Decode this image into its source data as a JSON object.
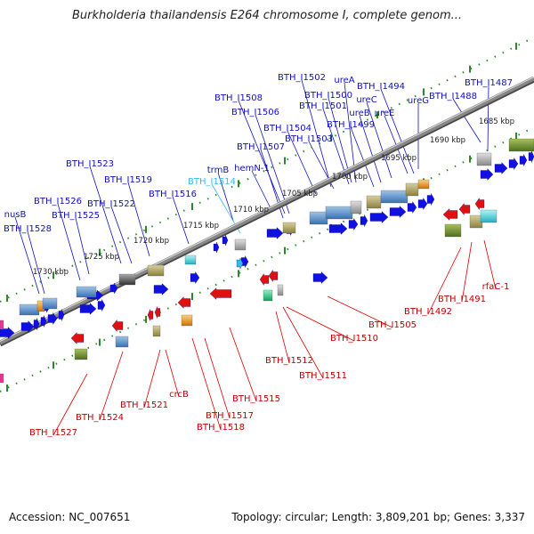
{
  "title": "Burkholderia thailandensis E264 chromosome I, complete genom...",
  "footer": {
    "accession": "Accession: NC_007651",
    "topology": "Topology: circular; Length: 3,809,201 bp; Genes: 3,337"
  },
  "colors": {
    "forward": "#1010e0",
    "reverse": "#e01010",
    "highlight": "#33bbee",
    "backbone": "#888888",
    "ruler": "#2a8a2a"
  },
  "kbp_labels": [
    "1730 kbp",
    "1725 kbp",
    "1720 kbp",
    "1715 kbp",
    "1710 kbp",
    "1705 kbp",
    "1700 kbp",
    "1695 kbp",
    "1690 kbp",
    "1685 kbp"
  ],
  "forward_labels": [
    "BTH_I1502",
    "ureA",
    "BTH_I1500",
    "BTH_I1494",
    "ureC",
    "BTH_I1487",
    "BTH_I1501",
    "BTH_I1488",
    "BTH_I1508",
    "ureB",
    "ureE",
    "ureG",
    "BTH_I1506",
    "BTH_I1499",
    "BTH_I1504",
    "BTH_I1503",
    "BTH_I1507",
    "trmB",
    "hemN-1",
    "BTH_I1514",
    "BTH_I1523",
    "BTH_I1519",
    "BTH_I1516",
    "BTH_I1526",
    "BTH_I1522",
    "nusB",
    "BTH_I1525",
    "BTH_I1528"
  ],
  "reverse_labels": [
    "rfaC-1",
    "BTH_I1491",
    "BTH_I1492",
    "BTH_I1505",
    "BTH_I1510",
    "BTH_I1512",
    "BTH_I1511",
    "BTH_I1515",
    "crcB",
    "BTH_I1521",
    "BTH_I1517",
    "BTH_I1518",
    "BTH_I1524",
    "BTH_I1527"
  ]
}
